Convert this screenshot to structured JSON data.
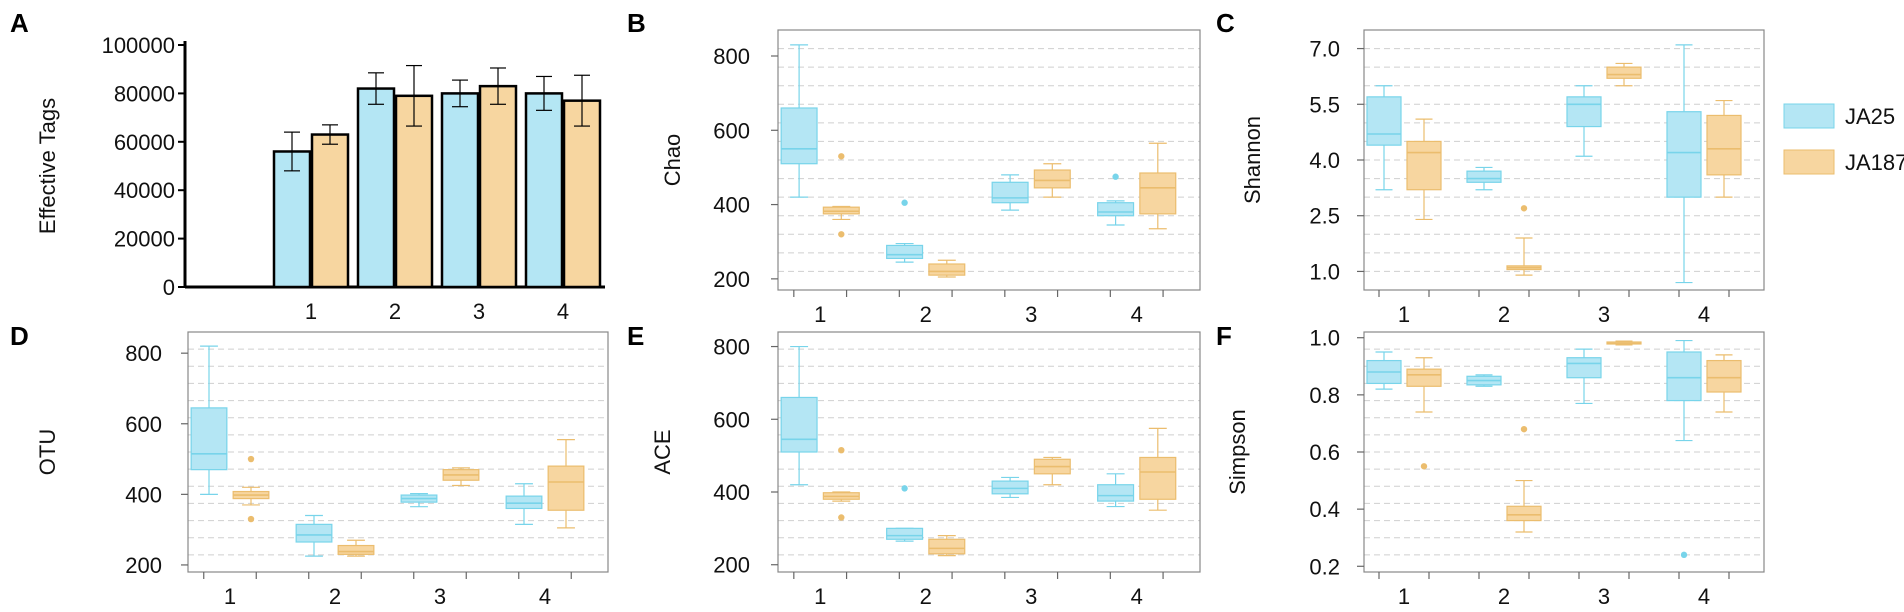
{
  "colors": {
    "JA25": "#b4e6f4",
    "JA25_stroke": "#78d4ea",
    "JA187": "#f7d6a0",
    "JA187_stroke": "#ebbd6e"
  },
  "legend": {
    "items": [
      {
        "label": "JA25",
        "color": "#b4e6f4"
      },
      {
        "label": "JA187",
        "color": "#f7d6a0"
      }
    ]
  },
  "chart_data": [
    {
      "panel": "A",
      "type": "bar",
      "ylabel": "Effective Tags",
      "categories": [
        "1",
        "2",
        "3",
        "4"
      ],
      "ylim": [
        0,
        100000
      ],
      "yticks": [
        "0",
        "20000",
        "40000",
        "60000",
        "80000",
        "100000"
      ],
      "series": [
        {
          "name": "JA25",
          "values": [
            56000,
            82000,
            80000,
            80000
          ],
          "errors": [
            8000,
            6500,
            5500,
            7000
          ]
        },
        {
          "name": "JA187",
          "values": [
            63000,
            79000,
            83000,
            77000
          ],
          "errors": [
            4000,
            12500,
            7500,
            10500
          ]
        }
      ]
    },
    {
      "panel": "B",
      "type": "box",
      "ylabel": "Chao",
      "categories": [
        "1",
        "2",
        "3",
        "4"
      ],
      "ylim": [
        170,
        870
      ],
      "yticks": [
        "200",
        "400",
        "600",
        "800"
      ],
      "series": [
        {
          "name": "JA25",
          "boxes": [
            {
              "min": 420,
              "q1": 510,
              "median": 550,
              "q3": 660,
              "max": 830,
              "outliers": []
            },
            {
              "min": 245,
              "q1": 255,
              "median": 265,
              "q3": 290,
              "max": 295,
              "outliers": [
                405
              ]
            },
            {
              "min": 385,
              "q1": 405,
              "median": 418,
              "q3": 460,
              "max": 480,
              "outliers": []
            },
            {
              "min": 345,
              "q1": 370,
              "median": 380,
              "q3": 405,
              "max": 410,
              "outliers": [
                475
              ]
            }
          ]
        },
        {
          "name": "JA187",
          "boxes": [
            {
              "min": 360,
              "q1": 375,
              "median": 382,
              "q3": 393,
              "max": 395,
              "outliers": [
                530,
                320
              ]
            },
            {
              "min": 205,
              "q1": 210,
              "median": 220,
              "q3": 240,
              "max": 250,
              "outliers": []
            },
            {
              "min": 420,
              "q1": 445,
              "median": 465,
              "q3": 493,
              "max": 510,
              "outliers": []
            },
            {
              "min": 335,
              "q1": 375,
              "median": 445,
              "q3": 485,
              "max": 565,
              "outliers": []
            }
          ]
        }
      ]
    },
    {
      "panel": "C",
      "type": "box",
      "ylabel": "Shannon",
      "categories": [
        "1",
        "2",
        "3",
        "4"
      ],
      "ylim": [
        0.5,
        7.5
      ],
      "yticks": [
        "1.0",
        "2.5",
        "4.0",
        "5.5",
        "7.0"
      ],
      "series": [
        {
          "name": "JA25",
          "boxes": [
            {
              "min": 3.2,
              "q1": 4.4,
              "median": 4.7,
              "q3": 5.7,
              "max": 6.0,
              "outliers": []
            },
            {
              "min": 3.2,
              "q1": 3.4,
              "median": 3.5,
              "q3": 3.7,
              "max": 3.8,
              "outliers": []
            },
            {
              "min": 4.1,
              "q1": 4.9,
              "median": 5.5,
              "q3": 5.7,
              "max": 6.0,
              "outliers": []
            },
            {
              "min": 0.7,
              "q1": 3.0,
              "median": 4.2,
              "q3": 5.3,
              "max": 7.1,
              "outliers": []
            }
          ]
        },
        {
          "name": "JA187",
          "boxes": [
            {
              "min": 2.4,
              "q1": 3.2,
              "median": 4.2,
              "q3": 4.5,
              "max": 5.1,
              "outliers": []
            },
            {
              "min": 0.9,
              "q1": 1.05,
              "median": 1.1,
              "q3": 1.15,
              "max": 1.9,
              "outliers": [
                2.7
              ]
            },
            {
              "min": 6.0,
              "q1": 6.2,
              "median": 6.3,
              "q3": 6.5,
              "max": 6.6,
              "outliers": []
            },
            {
              "min": 3.0,
              "q1": 3.6,
              "median": 4.3,
              "q3": 5.2,
              "max": 5.6,
              "outliers": []
            }
          ]
        }
      ]
    },
    {
      "panel": "D",
      "type": "box",
      "ylabel": "OTU",
      "categories": [
        "1",
        "2",
        "3",
        "4"
      ],
      "ylim": [
        180,
        860
      ],
      "yticks": [
        "200",
        "400",
        "600",
        "800"
      ],
      "series": [
        {
          "name": "JA25",
          "boxes": [
            {
              "min": 400,
              "q1": 470,
              "median": 515,
              "q3": 645,
              "max": 820,
              "outliers": []
            },
            {
              "min": 225,
              "q1": 265,
              "median": 285,
              "q3": 315,
              "max": 340,
              "outliers": []
            },
            {
              "min": 365,
              "q1": 378,
              "median": 388,
              "q3": 398,
              "max": 402,
              "outliers": []
            },
            {
              "min": 315,
              "q1": 360,
              "median": 375,
              "q3": 395,
              "max": 430,
              "outliers": []
            }
          ]
        },
        {
          "name": "JA187",
          "boxes": [
            {
              "min": 370,
              "q1": 388,
              "median": 398,
              "q3": 408,
              "max": 420,
              "outliers": [
                500,
                330
              ]
            },
            {
              "min": 225,
              "q1": 230,
              "median": 238,
              "q3": 255,
              "max": 270,
              "outliers": []
            },
            {
              "min": 425,
              "q1": 440,
              "median": 455,
              "q3": 470,
              "max": 475,
              "outliers": []
            },
            {
              "min": 305,
              "q1": 355,
              "median": 435,
              "q3": 480,
              "max": 555,
              "outliers": []
            }
          ]
        }
      ]
    },
    {
      "panel": "E",
      "type": "box",
      "ylabel": "ACE",
      "categories": [
        "1",
        "2",
        "3",
        "4"
      ],
      "ylim": [
        180,
        840
      ],
      "yticks": [
        "200",
        "400",
        "600",
        "800"
      ],
      "series": [
        {
          "name": "JA25",
          "boxes": [
            {
              "min": 420,
              "q1": 510,
              "median": 545,
              "q3": 660,
              "max": 800,
              "outliers": []
            },
            {
              "min": 265,
              "q1": 270,
              "median": 280,
              "q3": 300,
              "max": 300,
              "outliers": [
                410
              ]
            },
            {
              "min": 385,
              "q1": 395,
              "median": 410,
              "q3": 430,
              "max": 440,
              "outliers": []
            },
            {
              "min": 360,
              "q1": 375,
              "median": 390,
              "q3": 420,
              "max": 450,
              "outliers": []
            }
          ]
        },
        {
          "name": "JA187",
          "boxes": [
            {
              "min": 375,
              "q1": 380,
              "median": 388,
              "q3": 398,
              "max": 400,
              "outliers": [
                515,
                330
              ]
            },
            {
              "min": 225,
              "q1": 230,
              "median": 245,
              "q3": 270,
              "max": 280,
              "outliers": []
            },
            {
              "min": 420,
              "q1": 450,
              "median": 470,
              "q3": 490,
              "max": 495,
              "outliers": []
            },
            {
              "min": 350,
              "q1": 380,
              "median": 455,
              "q3": 495,
              "max": 575,
              "outliers": []
            }
          ]
        }
      ]
    },
    {
      "panel": "F",
      "type": "box",
      "ylabel": "Simpson",
      "categories": [
        "1",
        "2",
        "3",
        "4"
      ],
      "ylim": [
        0.18,
        1.02
      ],
      "yticks": [
        "0.2",
        "0.4",
        "0.6",
        "0.8",
        "1.0"
      ],
      "series": [
        {
          "name": "JA25",
          "boxes": [
            {
              "min": 0.82,
              "q1": 0.84,
              "median": 0.88,
              "q3": 0.92,
              "max": 0.95,
              "outliers": []
            },
            {
              "min": 0.83,
              "q1": 0.835,
              "median": 0.85,
              "q3": 0.865,
              "max": 0.87,
              "outliers": []
            },
            {
              "min": 0.77,
              "q1": 0.86,
              "median": 0.91,
              "q3": 0.93,
              "max": 0.96,
              "outliers": []
            },
            {
              "min": 0.64,
              "q1": 0.78,
              "median": 0.86,
              "q3": 0.95,
              "max": 0.99,
              "outliers": [
                0.24
              ]
            }
          ]
        },
        {
          "name": "JA187",
          "boxes": [
            {
              "min": 0.74,
              "q1": 0.83,
              "median": 0.87,
              "q3": 0.89,
              "max": 0.93,
              "outliers": [
                0.55
              ]
            },
            {
              "min": 0.32,
              "q1": 0.36,
              "median": 0.38,
              "q3": 0.41,
              "max": 0.5,
              "outliers": [
                0.68
              ]
            },
            {
              "min": 0.975,
              "q1": 0.978,
              "median": 0.98,
              "q3": 0.985,
              "max": 0.988,
              "outliers": []
            },
            {
              "min": 0.74,
              "q1": 0.81,
              "median": 0.86,
              "q3": 0.92,
              "max": 0.94,
              "outliers": []
            }
          ]
        }
      ]
    }
  ]
}
